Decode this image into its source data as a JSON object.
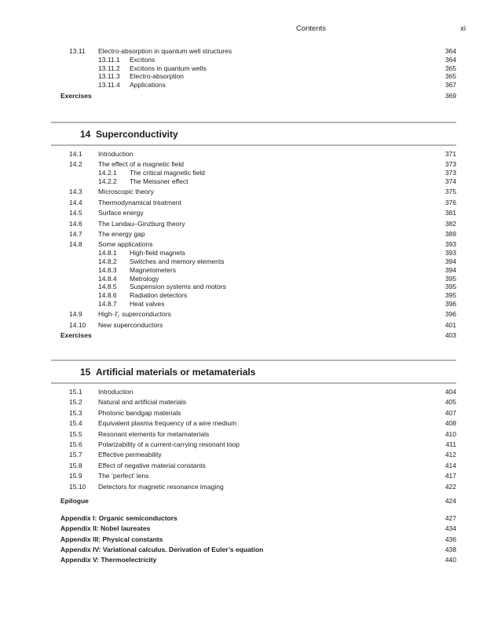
{
  "header": {
    "title": "Contents",
    "page_number": "xi"
  },
  "colors": {
    "rule": "#b4b4b4",
    "text": "#1c1c1c",
    "background": "#ffffff"
  },
  "toc": {
    "blocks": [
      {
        "kind": "entries",
        "rows": [
          {
            "type": "main",
            "num": "13.11",
            "title": "Electro-absorption in quantum well structures",
            "page": "364"
          },
          {
            "type": "sub",
            "num": "13.11.1",
            "title": "Excitons",
            "page": "364"
          },
          {
            "type": "sub",
            "num": "13.11.2",
            "title": "Excitons in quantum wells",
            "page": "365"
          },
          {
            "type": "sub",
            "num": "13.11.3",
            "title": "Electro-absorption",
            "page": "365"
          },
          {
            "type": "sub",
            "num": "13.11.4",
            "title": "Applications",
            "page": "367"
          },
          {
            "type": "label",
            "title": "Exercises",
            "page": "369"
          }
        ]
      },
      {
        "kind": "chapter",
        "num": "14",
        "title": "Superconductivity",
        "rows": [
          {
            "type": "main",
            "num": "14.1",
            "title": "Introduction",
            "page": "371"
          },
          {
            "type": "main",
            "num": "14.2",
            "title": "The effect of a magnetic field",
            "page": "373"
          },
          {
            "type": "sub",
            "num": "14.2.1",
            "title": "The critical magnetic field",
            "page": "373"
          },
          {
            "type": "sub",
            "num": "14.2.2",
            "title": "The Meissner effect",
            "page": "374"
          },
          {
            "type": "main",
            "num": "14.3",
            "title": "Microscopic theory",
            "page": "375"
          },
          {
            "type": "main",
            "num": "14.4",
            "title": "Thermodynamical treatment",
            "page": "376"
          },
          {
            "type": "main",
            "num": "14.5",
            "title": "Surface energy",
            "page": "381"
          },
          {
            "type": "main",
            "num": "14.6",
            "title": "The Landau–Ginzburg theory",
            "page": "382"
          },
          {
            "type": "main",
            "num": "14.7",
            "title": "The energy gap",
            "page": "389"
          },
          {
            "type": "main",
            "num": "14.8",
            "title": "Some applications",
            "page": "393"
          },
          {
            "type": "sub",
            "num": "14.8.1",
            "title": "High-field magnets",
            "page": "393"
          },
          {
            "type": "sub",
            "num": "14.8.2",
            "title": "Switches and memory elements",
            "page": "394"
          },
          {
            "type": "sub",
            "num": "14.8.3",
            "title": "Magnetometers",
            "page": "394"
          },
          {
            "type": "sub",
            "num": "14.8.4",
            "title": "Metrology",
            "page": "395"
          },
          {
            "type": "sub",
            "num": "14.8.5",
            "title": "Suspension systems and motors",
            "page": "395"
          },
          {
            "type": "sub",
            "num": "14.8.6",
            "title": "Radiation detectors",
            "page": "395"
          },
          {
            "type": "sub",
            "num": "14.8.7",
            "title": "Heat valves",
            "page": "396"
          },
          {
            "type": "main",
            "num": "14.9",
            "parts": [
              {
                "t": "High-"
              },
              {
                "t": "T",
                "i": true
              },
              {
                "t": "c",
                "s": true
              },
              {
                "t": " superconductors"
              }
            ],
            "page": "396"
          },
          {
            "type": "main",
            "num": "14.10",
            "title": "New superconductors",
            "page": "401"
          },
          {
            "type": "label",
            "title": "Exercises",
            "page": "403"
          }
        ]
      },
      {
        "kind": "chapter",
        "num": "15",
        "title": "Artificial materials or metamaterials",
        "rows": [
          {
            "type": "main",
            "num": "15.1",
            "title": "Introduction",
            "page": "404"
          },
          {
            "type": "main",
            "num": "15.2",
            "title": "Natural and artificial materials",
            "page": "405"
          },
          {
            "type": "main",
            "num": "15.3",
            "title": "Photonic bandgap materials",
            "page": "407"
          },
          {
            "type": "main",
            "num": "15.4",
            "title": "Equivalent plasma frequency of a wire medium",
            "page": "408"
          },
          {
            "type": "main",
            "num": "15.5",
            "title": "Resonant elements for metamaterials",
            "page": "410"
          },
          {
            "type": "main",
            "num": "15.6",
            "title": "Polarizability of a current-carrying resonant loop",
            "page": "411"
          },
          {
            "type": "main",
            "num": "15.7",
            "title": "Effective permeability",
            "page": "412"
          },
          {
            "type": "main",
            "num": "15.8",
            "title": "Effect of negative material constants",
            "page": "414"
          },
          {
            "type": "main",
            "num": "15.9",
            "title": "The ‘perfect’ lens",
            "page": "417"
          },
          {
            "type": "main",
            "num": "15.10",
            "title": "Detectors for magnetic resonance imaging",
            "page": "422"
          }
        ]
      },
      {
        "kind": "entries",
        "rows": [
          {
            "type": "label",
            "title": "Epilogue",
            "page": "424"
          },
          {
            "type": "label",
            "gap": true,
            "title": "Appendix I: Organic semiconductors",
            "page": "427"
          },
          {
            "type": "label",
            "title": "Appendix II: Nobel laureates",
            "page": "434"
          },
          {
            "type": "label",
            "title": "Appendix III: Physical constants",
            "page": "436"
          },
          {
            "type": "label",
            "title": "Appendix IV: Variational calculus. Derivation of Euler’s equation",
            "page": "438"
          },
          {
            "type": "label",
            "title": "Appendix V: Thermoelectricity",
            "page": "440"
          }
        ]
      }
    ]
  }
}
